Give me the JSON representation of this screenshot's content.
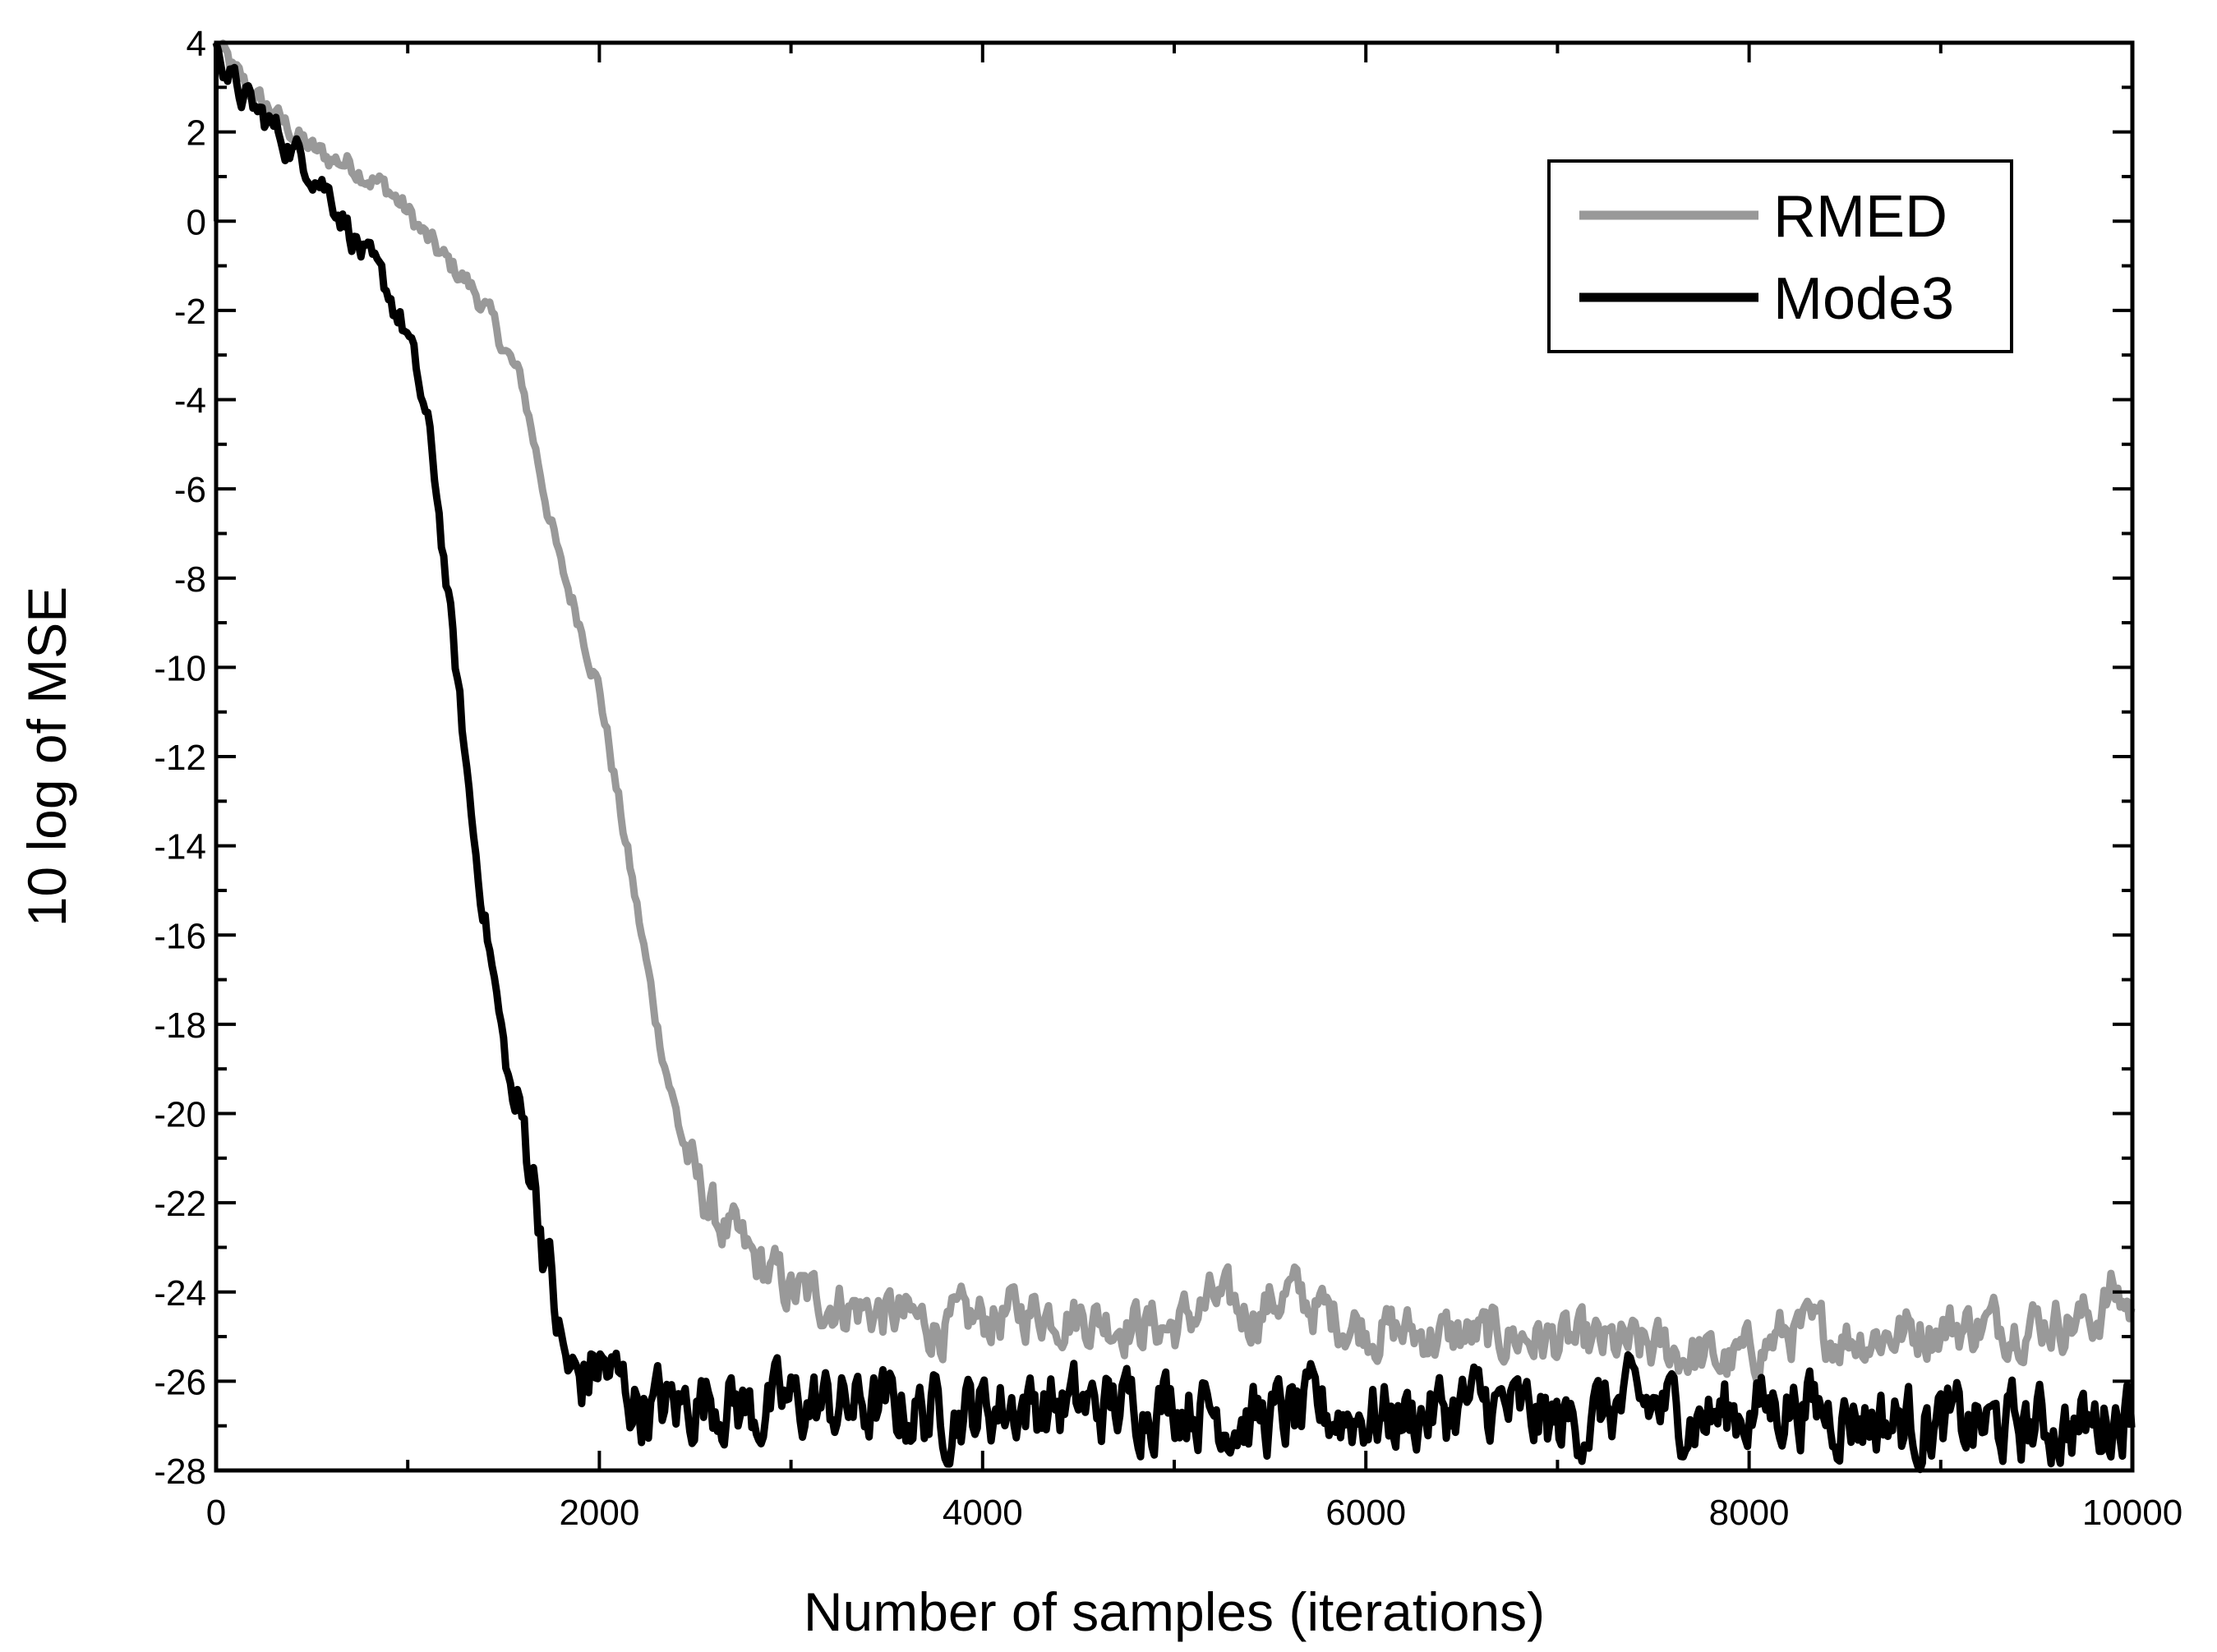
{
  "chart_data": {
    "type": "line",
    "title": "",
    "xlabel": "Number of samples (iterations)",
    "ylabel": "10 log of MSE",
    "xlim": [
      0,
      10000
    ],
    "ylim": [
      -28,
      4
    ],
    "xticks": [
      0,
      2000,
      4000,
      6000,
      8000,
      10000
    ],
    "yticks": [
      4,
      2,
      0,
      -2,
      -4,
      -6,
      -8,
      -10,
      -12,
      -14,
      -16,
      -18,
      -20,
      -22,
      -24,
      -26,
      -28
    ],
    "grid": false,
    "legend_position": "top-right",
    "series": [
      {
        "name": "RMED",
        "color": "#999999",
        "noise": 0.5,
        "x": [
          0,
          100,
          200,
          300,
          400,
          500,
          600,
          700,
          800,
          900,
          1000,
          1100,
          1200,
          1300,
          1400,
          1500,
          1600,
          1700,
          1800,
          1900,
          2000,
          2100,
          2200,
          2300,
          2400,
          2500,
          2600,
          2700,
          2800,
          2900,
          3000,
          3200,
          3400,
          3600,
          3800,
          4000,
          4300,
          4600,
          5000,
          5200,
          5400,
          5600,
          5800,
          6000,
          6400,
          6800,
          7200,
          7600,
          7900,
          8000,
          8200,
          8600,
          9000,
          9400,
          9800,
          9900,
          10000
        ],
        "y": [
          4,
          3.3,
          2.8,
          2.4,
          2.0,
          1.6,
          1.4,
          1.3,
          1.0,
          0.7,
          0.2,
          -0.4,
          -0.9,
          -1.3,
          -1.9,
          -2.8,
          -3.7,
          -5.8,
          -7.8,
          -9.0,
          -10.5,
          -13.0,
          -15.5,
          -18.0,
          -20.0,
          -21.5,
          -22.3,
          -22.8,
          -23.3,
          -23.6,
          -24.0,
          -24.2,
          -24.4,
          -24.6,
          -24.8,
          -24.6,
          -24.4,
          -24.6,
          -24.8,
          -24.2,
          -24.5,
          -24.0,
          -24.5,
          -24.8,
          -25.0,
          -25.0,
          -25.2,
          -25.3,
          -25.6,
          -25.4,
          -24.9,
          -25.0,
          -24.8,
          -24.7,
          -24.6,
          -24.0,
          -24.4
        ]
      },
      {
        "name": "Mode3",
        "color": "#000000",
        "noise": 0.7,
        "x": [
          0,
          100,
          200,
          300,
          400,
          500,
          600,
          700,
          800,
          900,
          1000,
          1100,
          1150,
          1200,
          1250,
          1300,
          1350,
          1400,
          1450,
          1500,
          1550,
          1600,
          1650,
          1700,
          1750,
          1800,
          1850,
          1900,
          2000,
          2200,
          2400,
          2600,
          2800,
          3000,
          3400,
          3800,
          4200,
          4600,
          5000,
          5400,
          5800,
          6200,
          6600,
          7000,
          7400,
          7800,
          8200,
          8600,
          9000,
          9400,
          9800,
          10000
        ],
        "y": [
          4,
          3.0,
          2.5,
          2.1,
          1.6,
          1.2,
          0.6,
          -0.2,
          -1.0,
          -1.6,
          -2.6,
          -4.5,
          -6.0,
          -8.0,
          -10.0,
          -12.0,
          -14.0,
          -15.5,
          -17.0,
          -18.5,
          -19.8,
          -20.3,
          -21.2,
          -22.6,
          -23.8,
          -25.3,
          -25.9,
          -26.0,
          -25.6,
          -26.5,
          -26.6,
          -26.3,
          -26.7,
          -26.5,
          -26.6,
          -26.7,
          -26.5,
          -26.6,
          -26.4,
          -26.9,
          -26.7,
          -26.8,
          -26.5,
          -27.0,
          -26.5,
          -26.8,
          -26.5,
          -26.8,
          -27.0,
          -27.0,
          -27.0,
          -26.5
        ]
      }
    ]
  }
}
